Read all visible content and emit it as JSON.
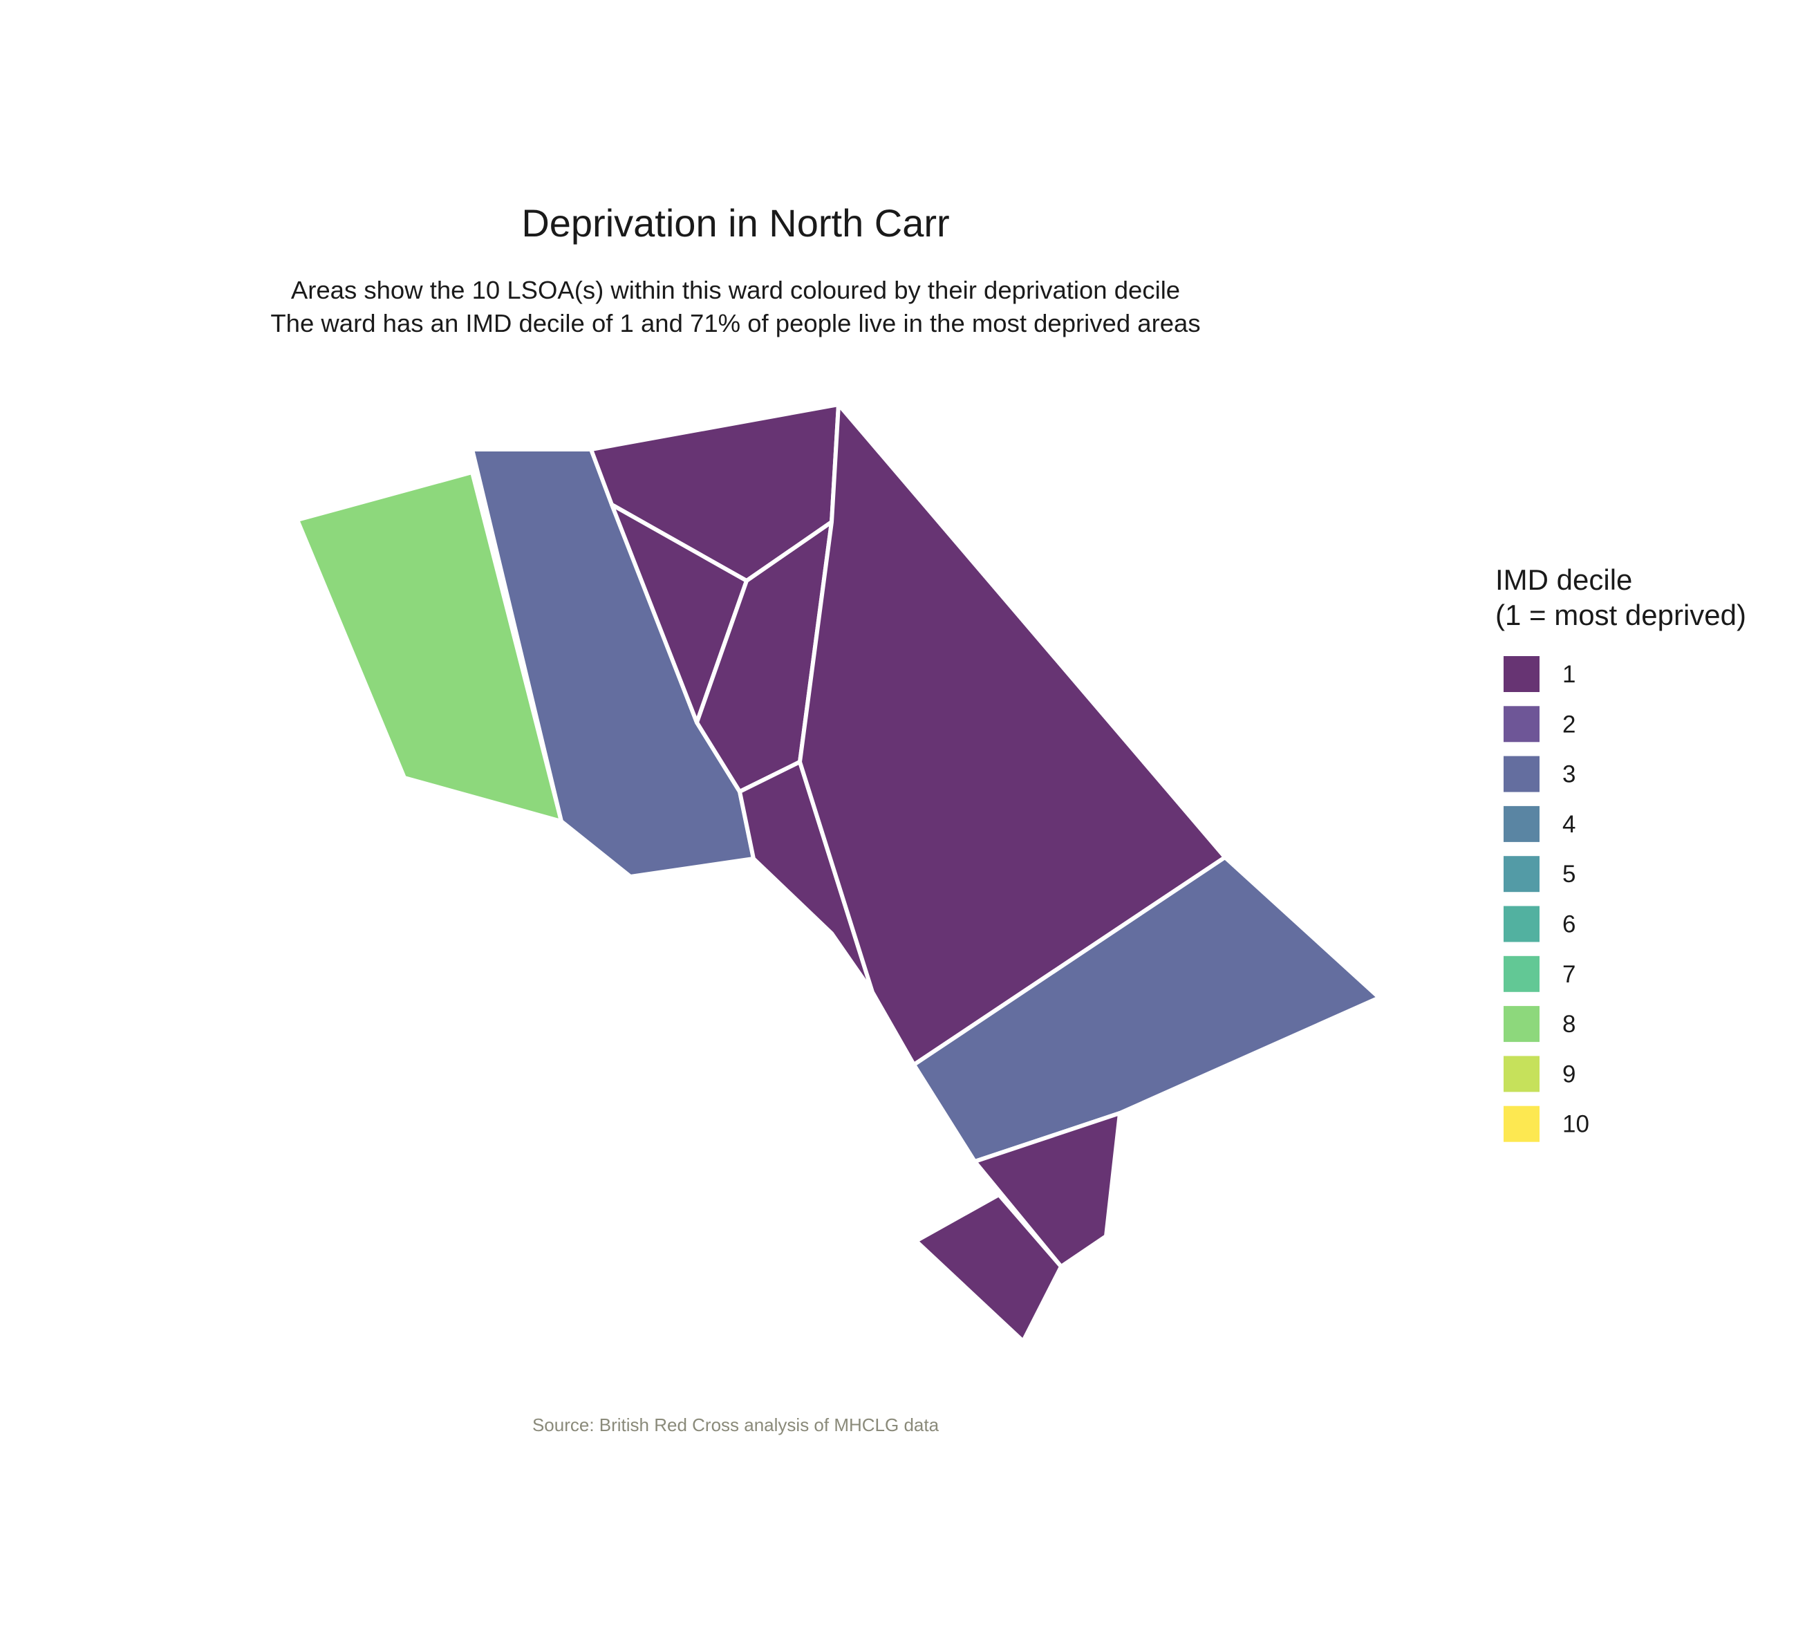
{
  "chart_data": {
    "type": "choropleth",
    "title": "Deprivation in North Carr",
    "subtitle_lines": [
      "Areas show the 10 LSOA(s) within this ward coloured by their deprivation decile",
      "The ward has an IMD decile of 1 and 71% of people live in the most deprived areas"
    ],
    "caption": "Source: British Red Cross analysis of MHCLG data",
    "legend": {
      "title_lines": [
        "IMD decile",
        "(1 = most deprived)"
      ],
      "placement": "right",
      "entries": [
        {
          "label": "1",
          "color": "#673473"
        },
        {
          "label": "2",
          "color": "#6E5697"
        },
        {
          "label": "3",
          "color": "#646E9F"
        },
        {
          "label": "4",
          "color": "#5A85A3"
        },
        {
          "label": "5",
          "color": "#539BA6"
        },
        {
          "label": "6",
          "color": "#52B1A0"
        },
        {
          "label": "7",
          "color": "#62C895"
        },
        {
          "label": "8",
          "color": "#8DD87C"
        },
        {
          "label": "9",
          "color": "#C6E15B"
        },
        {
          "label": "10",
          "color": "#FDE851"
        }
      ]
    },
    "areas": [
      {
        "decile": 8
      },
      {
        "decile": 3
      },
      {
        "decile": 1
      },
      {
        "decile": 1
      },
      {
        "decile": 1
      },
      {
        "decile": 1
      },
      {
        "decile": 1
      },
      {
        "decile": 3
      },
      {
        "decile": 1
      },
      {
        "decile": 1
      }
    ]
  }
}
